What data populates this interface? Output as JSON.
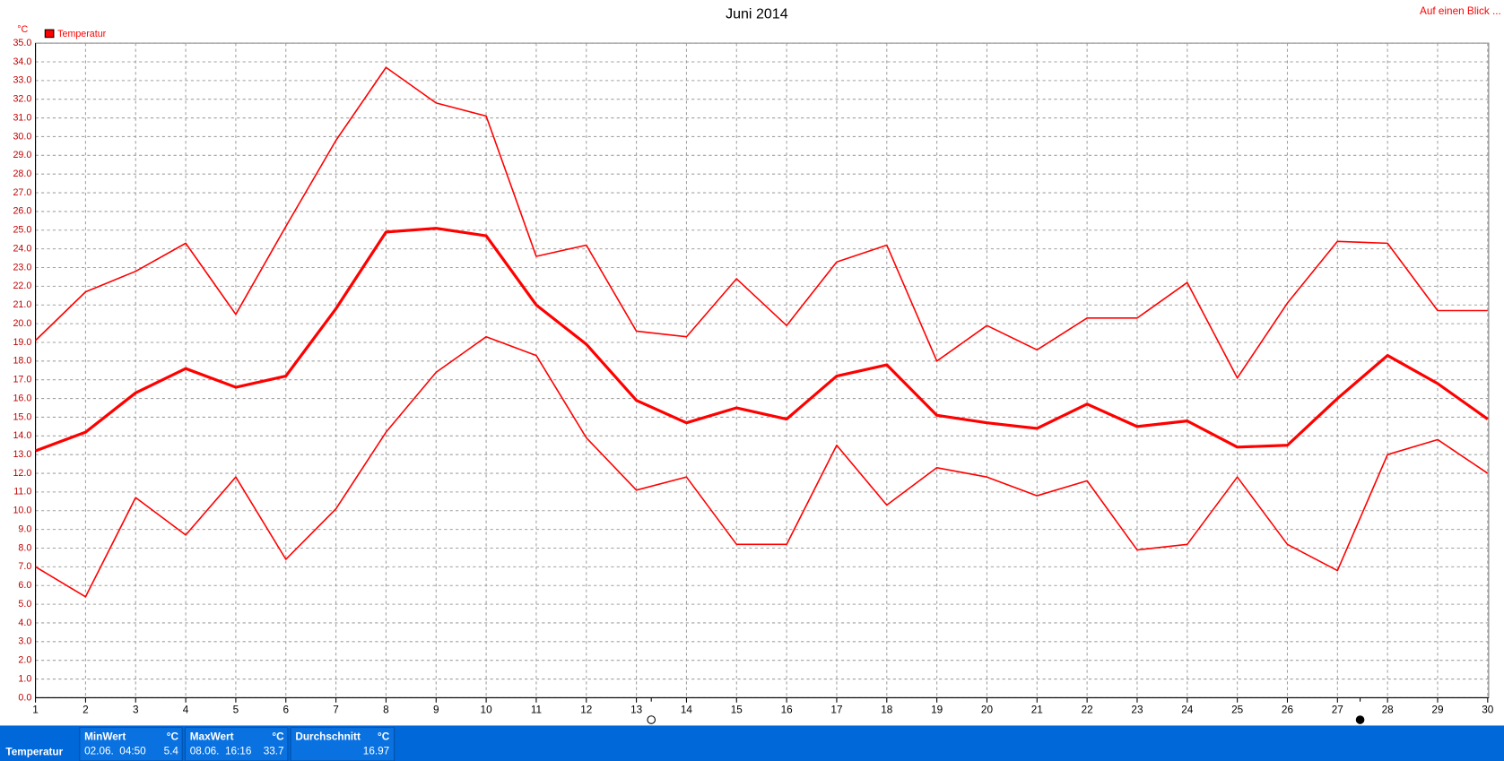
{
  "chart_data": {
    "type": "line",
    "title": "Juni 2014",
    "y_unit": "°C",
    "link": "Auf einen Blick ...",
    "legend": "Temperatur",
    "legend_color": "#ff0000",
    "x": [
      1,
      2,
      3,
      4,
      5,
      6,
      7,
      8,
      9,
      10,
      11,
      12,
      13,
      14,
      15,
      16,
      17,
      18,
      19,
      20,
      21,
      22,
      23,
      24,
      25,
      26,
      27,
      28,
      29,
      30
    ],
    "xlim": [
      1,
      30
    ],
    "xticks": [
      1,
      2,
      3,
      4,
      5,
      6,
      7,
      8,
      9,
      10,
      11,
      12,
      13,
      14,
      15,
      16,
      17,
      18,
      19,
      20,
      21,
      22,
      23,
      24,
      25,
      26,
      27,
      28,
      29,
      30
    ],
    "ylim": [
      0,
      35
    ],
    "yticks": [
      {
        "value": 0,
        "label": "0.0"
      },
      {
        "value": 1,
        "label": "1.0"
      },
      {
        "value": 2,
        "label": "2.0"
      },
      {
        "value": 3,
        "label": "3.0"
      },
      {
        "value": 4,
        "label": "4.0"
      },
      {
        "value": 5,
        "label": "5.0"
      },
      {
        "value": 6,
        "label": "6.0"
      },
      {
        "value": 7,
        "label": "7.0"
      },
      {
        "value": 8,
        "label": "8.0"
      },
      {
        "value": 9,
        "label": "9.0"
      },
      {
        "value": 10,
        "label": "10.0"
      },
      {
        "value": 11,
        "label": "11.0"
      },
      {
        "value": 12,
        "label": "12.0"
      },
      {
        "value": 13,
        "label": "13.0"
      },
      {
        "value": 14,
        "label": "14.0"
      },
      {
        "value": 15,
        "label": "15.0"
      },
      {
        "value": 16,
        "label": "16.0"
      },
      {
        "value": 17,
        "label": "17.0"
      },
      {
        "value": 18,
        "label": "18.0"
      },
      {
        "value": 19,
        "label": "19.0"
      },
      {
        "value": 20,
        "label": "20.0"
      },
      {
        "value": 21,
        "label": "21.0"
      },
      {
        "value": 22,
        "label": "22.0"
      },
      {
        "value": 23,
        "label": "23.0"
      },
      {
        "value": 24,
        "label": "24.0"
      },
      {
        "value": 25,
        "label": "25.0"
      },
      {
        "value": 26,
        "label": "26.0"
      },
      {
        "value": 27,
        "label": "27.0"
      },
      {
        "value": 28,
        "label": "28.0"
      },
      {
        "value": 29,
        "label": "29.0"
      },
      {
        "value": 30,
        "label": "30.0"
      },
      {
        "value": 31,
        "label": "31.0"
      },
      {
        "value": 32,
        "label": "32.0"
      },
      {
        "value": 33,
        "label": "33.0"
      },
      {
        "value": 34,
        "label": "34.0"
      },
      {
        "value": 35,
        "label": "35.0"
      }
    ],
    "grid": true,
    "series": [
      {
        "color": "#ff0000",
        "width": 1.5,
        "values": [
          19.1,
          21.7,
          22.8,
          24.3,
          20.5,
          25.2,
          29.8,
          33.7,
          31.8,
          31.1,
          23.6,
          24.2,
          19.6,
          19.3,
          22.4,
          19.9,
          23.3,
          24.2,
          18.0,
          19.9,
          18.6,
          20.3,
          20.3,
          22.2,
          17.1,
          21.1,
          24.4,
          24.3,
          20.7,
          20.7
        ]
      },
      {
        "color": "#ff0000",
        "width": 3,
        "values": [
          13.2,
          14.2,
          16.3,
          17.6,
          16.6,
          17.2,
          20.8,
          24.9,
          25.1,
          24.7,
          21.0,
          18.9,
          15.9,
          14.7,
          15.5,
          14.9,
          17.2,
          17.8,
          15.1,
          14.7,
          14.4,
          15.7,
          14.5,
          14.8,
          13.4,
          13.5,
          16.0,
          18.3,
          16.8,
          14.9
        ]
      },
      {
        "color": "#ff0000",
        "width": 1.5,
        "values": [
          7.0,
          5.4,
          10.7,
          8.7,
          11.8,
          7.4,
          10.1,
          14.2,
          17.4,
          19.3,
          18.3,
          13.9,
          11.1,
          11.8,
          8.2,
          8.2,
          13.5,
          10.3,
          12.3,
          11.8,
          10.8,
          11.6,
          7.9,
          8.2,
          11.8,
          8.2,
          6.8,
          13.0,
          13.8,
          12.0
        ]
      }
    ]
  },
  "summary": {
    "name": "Temperatur",
    "min": {
      "label": "MinWert",
      "unit": "°C",
      "time": "02.06.  04:50",
      "value": "5.4"
    },
    "max": {
      "label": "MaxWert",
      "unit": "°C",
      "time": "08.06.  16:16",
      "value": "33.7"
    },
    "avg": {
      "label": "Durchschnitt",
      "unit": "°C",
      "value": "16.97"
    }
  }
}
